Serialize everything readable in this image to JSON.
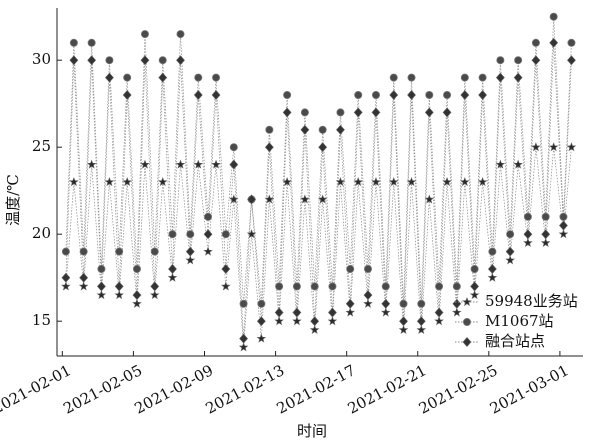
{
  "chart_data": {
    "type": "line",
    "x_label": "时间",
    "y_label": "温度/℃",
    "x": [
      0.2,
      0.65,
      1.2,
      1.65,
      2.2,
      2.65,
      3.2,
      3.65,
      4.2,
      4.65,
      5.2,
      5.65,
      6.2,
      6.65,
      7.2,
      7.65,
      8.2,
      8.65,
      9.2,
      9.65,
      10.2,
      10.65,
      11.2,
      11.65,
      12.2,
      12.65,
      13.2,
      13.65,
      14.2,
      14.65,
      15.2,
      15.65,
      16.2,
      16.65,
      17.2,
      17.65,
      18.2,
      18.65,
      19.2,
      19.65,
      20.2,
      20.65,
      21.2,
      21.65,
      22.2,
      22.65,
      23.2,
      23.65,
      24.2,
      24.65,
      25.2,
      25.65,
      26.2,
      26.65,
      27.2,
      27.65,
      28.2,
      28.65
    ],
    "series": [
      {
        "name": "59948业务站",
        "color": "#2a2a2a",
        "marker": "star",
        "values": [
          17,
          23,
          17,
          24,
          16.5,
          23,
          16.5,
          23,
          16,
          24,
          16.5,
          23,
          17.5,
          24,
          18.5,
          24,
          19,
          24,
          17,
          22,
          13.5,
          20,
          14,
          22,
          15,
          23,
          15,
          22,
          14.5,
          22,
          15,
          23,
          15.5,
          23,
          16,
          23,
          15.5,
          23,
          14.5,
          23,
          14.5,
          22,
          15,
          23,
          15.5,
          23,
          16.5,
          23,
          17.5,
          24,
          18.5,
          24,
          19.5,
          25,
          19.5,
          25,
          20,
          25
        ]
      },
      {
        "name": "M1067站",
        "color": "#4a4a4a",
        "marker": "circle",
        "values": [
          19,
          31,
          19,
          31,
          18,
          30,
          19,
          29,
          18,
          31.5,
          19,
          30,
          20,
          31.5,
          20,
          29,
          21,
          29,
          20,
          25,
          16,
          22,
          16,
          26,
          17,
          28,
          17,
          27,
          17,
          26,
          17,
          27,
          18,
          28,
          18,
          28,
          17,
          29,
          16,
          29,
          16,
          28,
          17,
          28,
          17,
          29,
          18,
          29,
          19,
          30,
          20,
          30,
          21,
          31,
          21,
          32.5,
          21,
          31
        ]
      },
      {
        "name": "融合站点",
        "color": "#333333",
        "marker": "diamond",
        "values": [
          17.5,
          30,
          17.5,
          30,
          17,
          29,
          17,
          28,
          16.5,
          30,
          17,
          29,
          18,
          30,
          19,
          28,
          20,
          28,
          18,
          24,
          14,
          22,
          15,
          25,
          15.5,
          27,
          15.5,
          26,
          15,
          25,
          15.5,
          26,
          16,
          27,
          16.5,
          27,
          16,
          28,
          15,
          28,
          15,
          27,
          15.5,
          27,
          16,
          28,
          17,
          28,
          18,
          29,
          19,
          29,
          20,
          30,
          20,
          31,
          20.5,
          30
        ]
      }
    ],
    "xlim": [
      -0.3,
      29.3
    ],
    "xticks": [
      {
        "value": 0,
        "label": "2021-02-01"
      },
      {
        "value": 4,
        "label": "2021-02-05"
      },
      {
        "value": 8,
        "label": "2021-02-09"
      },
      {
        "value": 12,
        "label": "2021-02-13"
      },
      {
        "value": 16,
        "label": "2021-02-17"
      },
      {
        "value": 20,
        "label": "2021-02-21"
      },
      {
        "value": 24,
        "label": "2021-02-25"
      },
      {
        "value": 28,
        "label": "2021-03-01"
      }
    ],
    "ylim": [
      13,
      33
    ],
    "yticks": [
      15,
      20,
      25,
      30
    ],
    "legend": "lower right"
  }
}
